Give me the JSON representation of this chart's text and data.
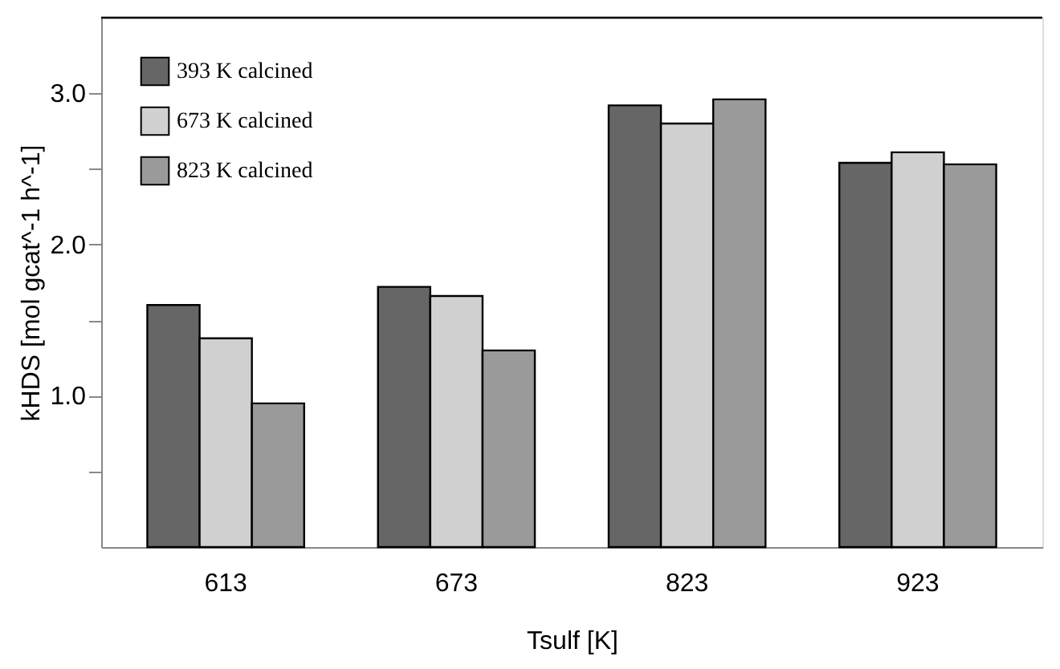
{
  "chart_data": {
    "type": "bar",
    "xlabel": "Tsulf [K]",
    "ylabel": "kHDS [mol gcat^-1 h^-1]",
    "categories": [
      "613",
      "673",
      "823",
      "923"
    ],
    "series": [
      {
        "name": "393 K calcined",
        "color": "#666666",
        "values": [
          1.6,
          1.72,
          2.92,
          2.54
        ]
      },
      {
        "name": "673 K calcined",
        "color": "#d0d0d0",
        "values": [
          1.38,
          1.66,
          2.8,
          2.61
        ]
      },
      {
        "name": "823 K calcined",
        "color": "#9a9a9a",
        "values": [
          0.95,
          1.3,
          2.96,
          2.53
        ]
      }
    ],
    "ylim": [
      0,
      3.5
    ],
    "yticks": [
      {
        "value": 0.5,
        "label": null
      },
      {
        "value": 1,
        "label": "1.0"
      },
      {
        "value": 1.5,
        "label": null
      },
      {
        "value": 2,
        "label": "2.0"
      },
      {
        "value": 2.5,
        "label": null
      },
      {
        "value": 3,
        "label": "3.0"
      }
    ],
    "legend": "top left",
    "grid": false
  }
}
